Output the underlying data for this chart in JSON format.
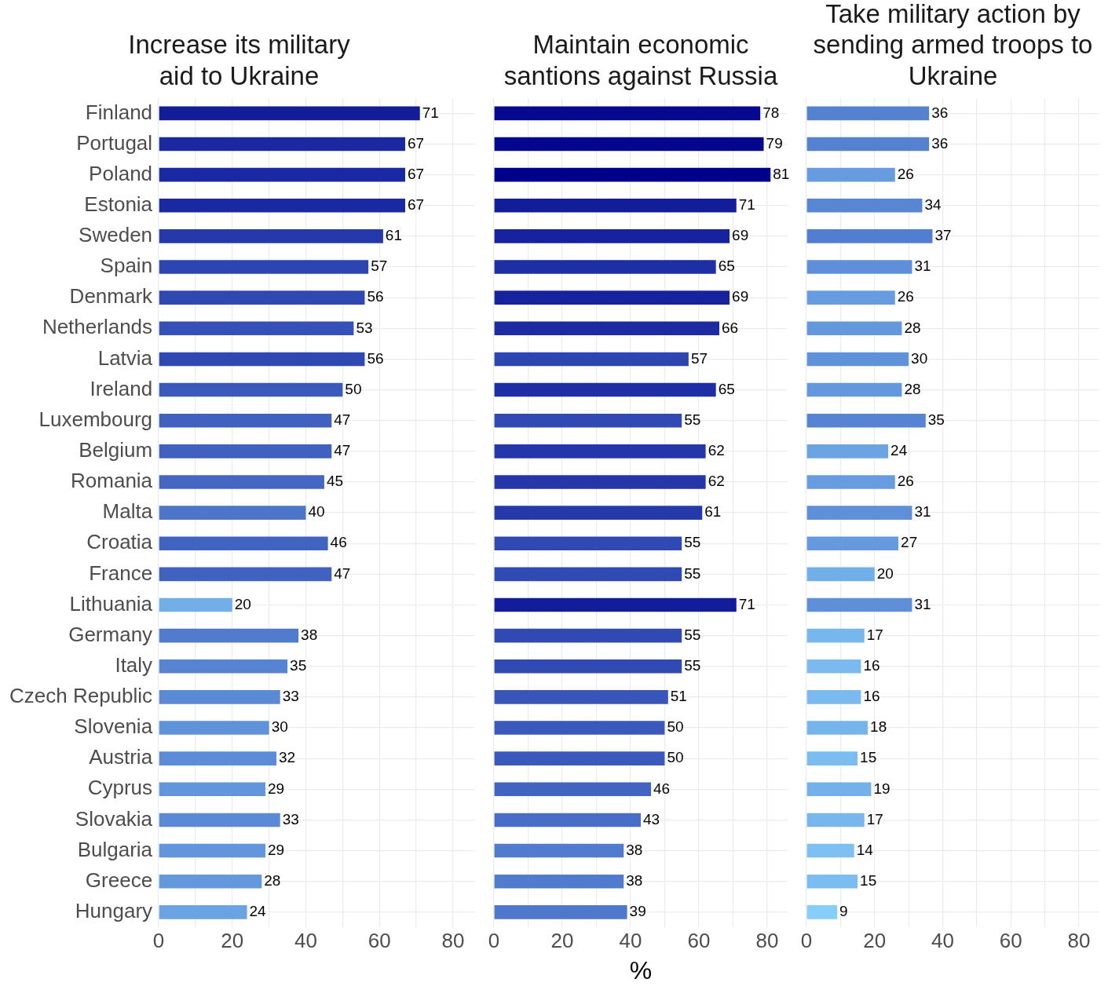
{
  "chart_data": [
    {
      "type": "bar",
      "orientation": "horizontal",
      "title": "Increase its military aid to Ukraine",
      "categories": [
        "Finland",
        "Portugal",
        "Poland",
        "Estonia",
        "Sweden",
        "Spain",
        "Denmark",
        "Netherlands",
        "Latvia",
        "Ireland",
        "Luxembourg",
        "Belgium",
        "Romania",
        "Malta",
        "Croatia",
        "France",
        "Lithuania",
        "Germany",
        "Italy",
        "Czech Republic",
        "Slovenia",
        "Austria",
        "Cyprus",
        "Slovakia",
        "Bulgaria",
        "Greece",
        "Hungary"
      ],
      "values": [
        71,
        67,
        67,
        67,
        61,
        57,
        56,
        53,
        56,
        50,
        47,
        47,
        45,
        40,
        46,
        47,
        20,
        38,
        35,
        33,
        30,
        32,
        29,
        33,
        29,
        28,
        24
      ],
      "colors": [
        "#131d9a",
        "#1a28a1",
        "#1a28a1",
        "#1a28a1",
        "#2639aa",
        "#2d45b0",
        "#2f48b2",
        "#3550b6",
        "#2f48b2",
        "#3a59bb",
        "#4061bf",
        "#4061bf",
        "#4467c3",
        "#4d75ca",
        "#4264c1",
        "#4061bf",
        "#72afe9",
        "#517bcd",
        "#5684d2",
        "#5a89d5",
        "#6092da",
        "#5c8cd7",
        "#6295db",
        "#5a89d5",
        "#6295db",
        "#6398dd",
        "#6ba3e3"
      ],
      "xlim": [
        0,
        86
      ],
      "xticks": [
        0,
        {
          "value": 10,
          "label": null
        },
        20,
        {
          "value": 30,
          "label": null
        },
        40,
        {
          "value": 50,
          "label": null
        },
        60,
        {
          "value": 70,
          "label": null
        },
        80
      ],
      "grid": true,
      "data_labels": true,
      "legend": false
    },
    {
      "type": "bar",
      "orientation": "horizontal",
      "title": "Maintain economic santions against Russia",
      "xlabel": "%",
      "categories": [
        null,
        null,
        null,
        null,
        null,
        null,
        null,
        null,
        null,
        null,
        null,
        null,
        null,
        null,
        null,
        null,
        null,
        null,
        null,
        null,
        null,
        null,
        null,
        null,
        null,
        null,
        null
      ],
      "values": [
        78,
        79,
        81,
        71,
        69,
        65,
        69,
        66,
        57,
        65,
        55,
        62,
        62,
        61,
        55,
        55,
        71,
        55,
        55,
        51,
        50,
        50,
        46,
        43,
        38,
        38,
        39
      ],
      "colors": [
        "#060990",
        "#04068e",
        "#00008b",
        "#131d9a",
        "#17229e",
        "#1e2ea4",
        "#17229e",
        "#1c2ba2",
        "#2d45b0",
        "#1e2ea4",
        "#314ab3",
        "#2436a8",
        "#2436a8",
        "#2639aa",
        "#314ab3",
        "#314ab3",
        "#131d9a",
        "#314ab3",
        "#314ab3",
        "#3856b9",
        "#3a59bb",
        "#3a59bb",
        "#4264c1",
        "#476dc6",
        "#517bcd",
        "#517bcd",
        "#4f78cc"
      ],
      "xlim": [
        0,
        86
      ],
      "xticks": [
        0,
        {
          "value": 10,
          "label": null
        },
        20,
        {
          "value": 30,
          "label": null
        },
        40,
        {
          "value": 50,
          "label": null
        },
        60,
        {
          "value": 70,
          "label": null
        },
        80
      ],
      "grid": true,
      "data_labels": true,
      "legend": false,
      "tick_labels": "x"
    },
    {
      "type": "bar",
      "orientation": "horizontal",
      "title": "Take military action by sending armed troops to Ukraine",
      "categories": [
        null,
        null,
        null,
        null,
        null,
        null,
        null,
        null,
        null,
        null,
        null,
        null,
        null,
        null,
        null,
        null,
        null,
        null,
        null,
        null,
        null,
        null,
        null,
        null,
        null,
        null,
        null
      ],
      "values": [
        36,
        36,
        26,
        34,
        37,
        31,
        26,
        28,
        30,
        28,
        35,
        24,
        26,
        31,
        27,
        20,
        31,
        17,
        16,
        16,
        18,
        15,
        19,
        17,
        14,
        15,
        9
      ],
      "colors": [
        "#5481d0",
        "#5481d0",
        "#679de0",
        "#5886d3",
        "#537ecf",
        "#5e8fd8",
        "#679de0",
        "#6398dd",
        "#6092da",
        "#6398dd",
        "#5684d2",
        "#6ba3e3",
        "#679de0",
        "#5e8fd8",
        "#659bde",
        "#72afe9",
        "#5e8fd8",
        "#78b7ee",
        "#7abaef",
        "#7abaef",
        "#76b4ec",
        "#7cbdf1",
        "#74b1eb",
        "#78b7ee",
        "#7ec0f2",
        "#7cbdf1",
        "#87cefa"
      ],
      "xlim": [
        0,
        86
      ],
      "xticks": [
        0,
        {
          "value": 10,
          "label": null
        },
        20,
        {
          "value": 30,
          "label": null
        },
        40,
        {
          "value": 50,
          "label": null
        },
        60,
        {
          "value": 70,
          "label": null
        },
        80
      ],
      "grid": true,
      "data_labels": true,
      "legend": false,
      "tick_labels": "x"
    }
  ]
}
